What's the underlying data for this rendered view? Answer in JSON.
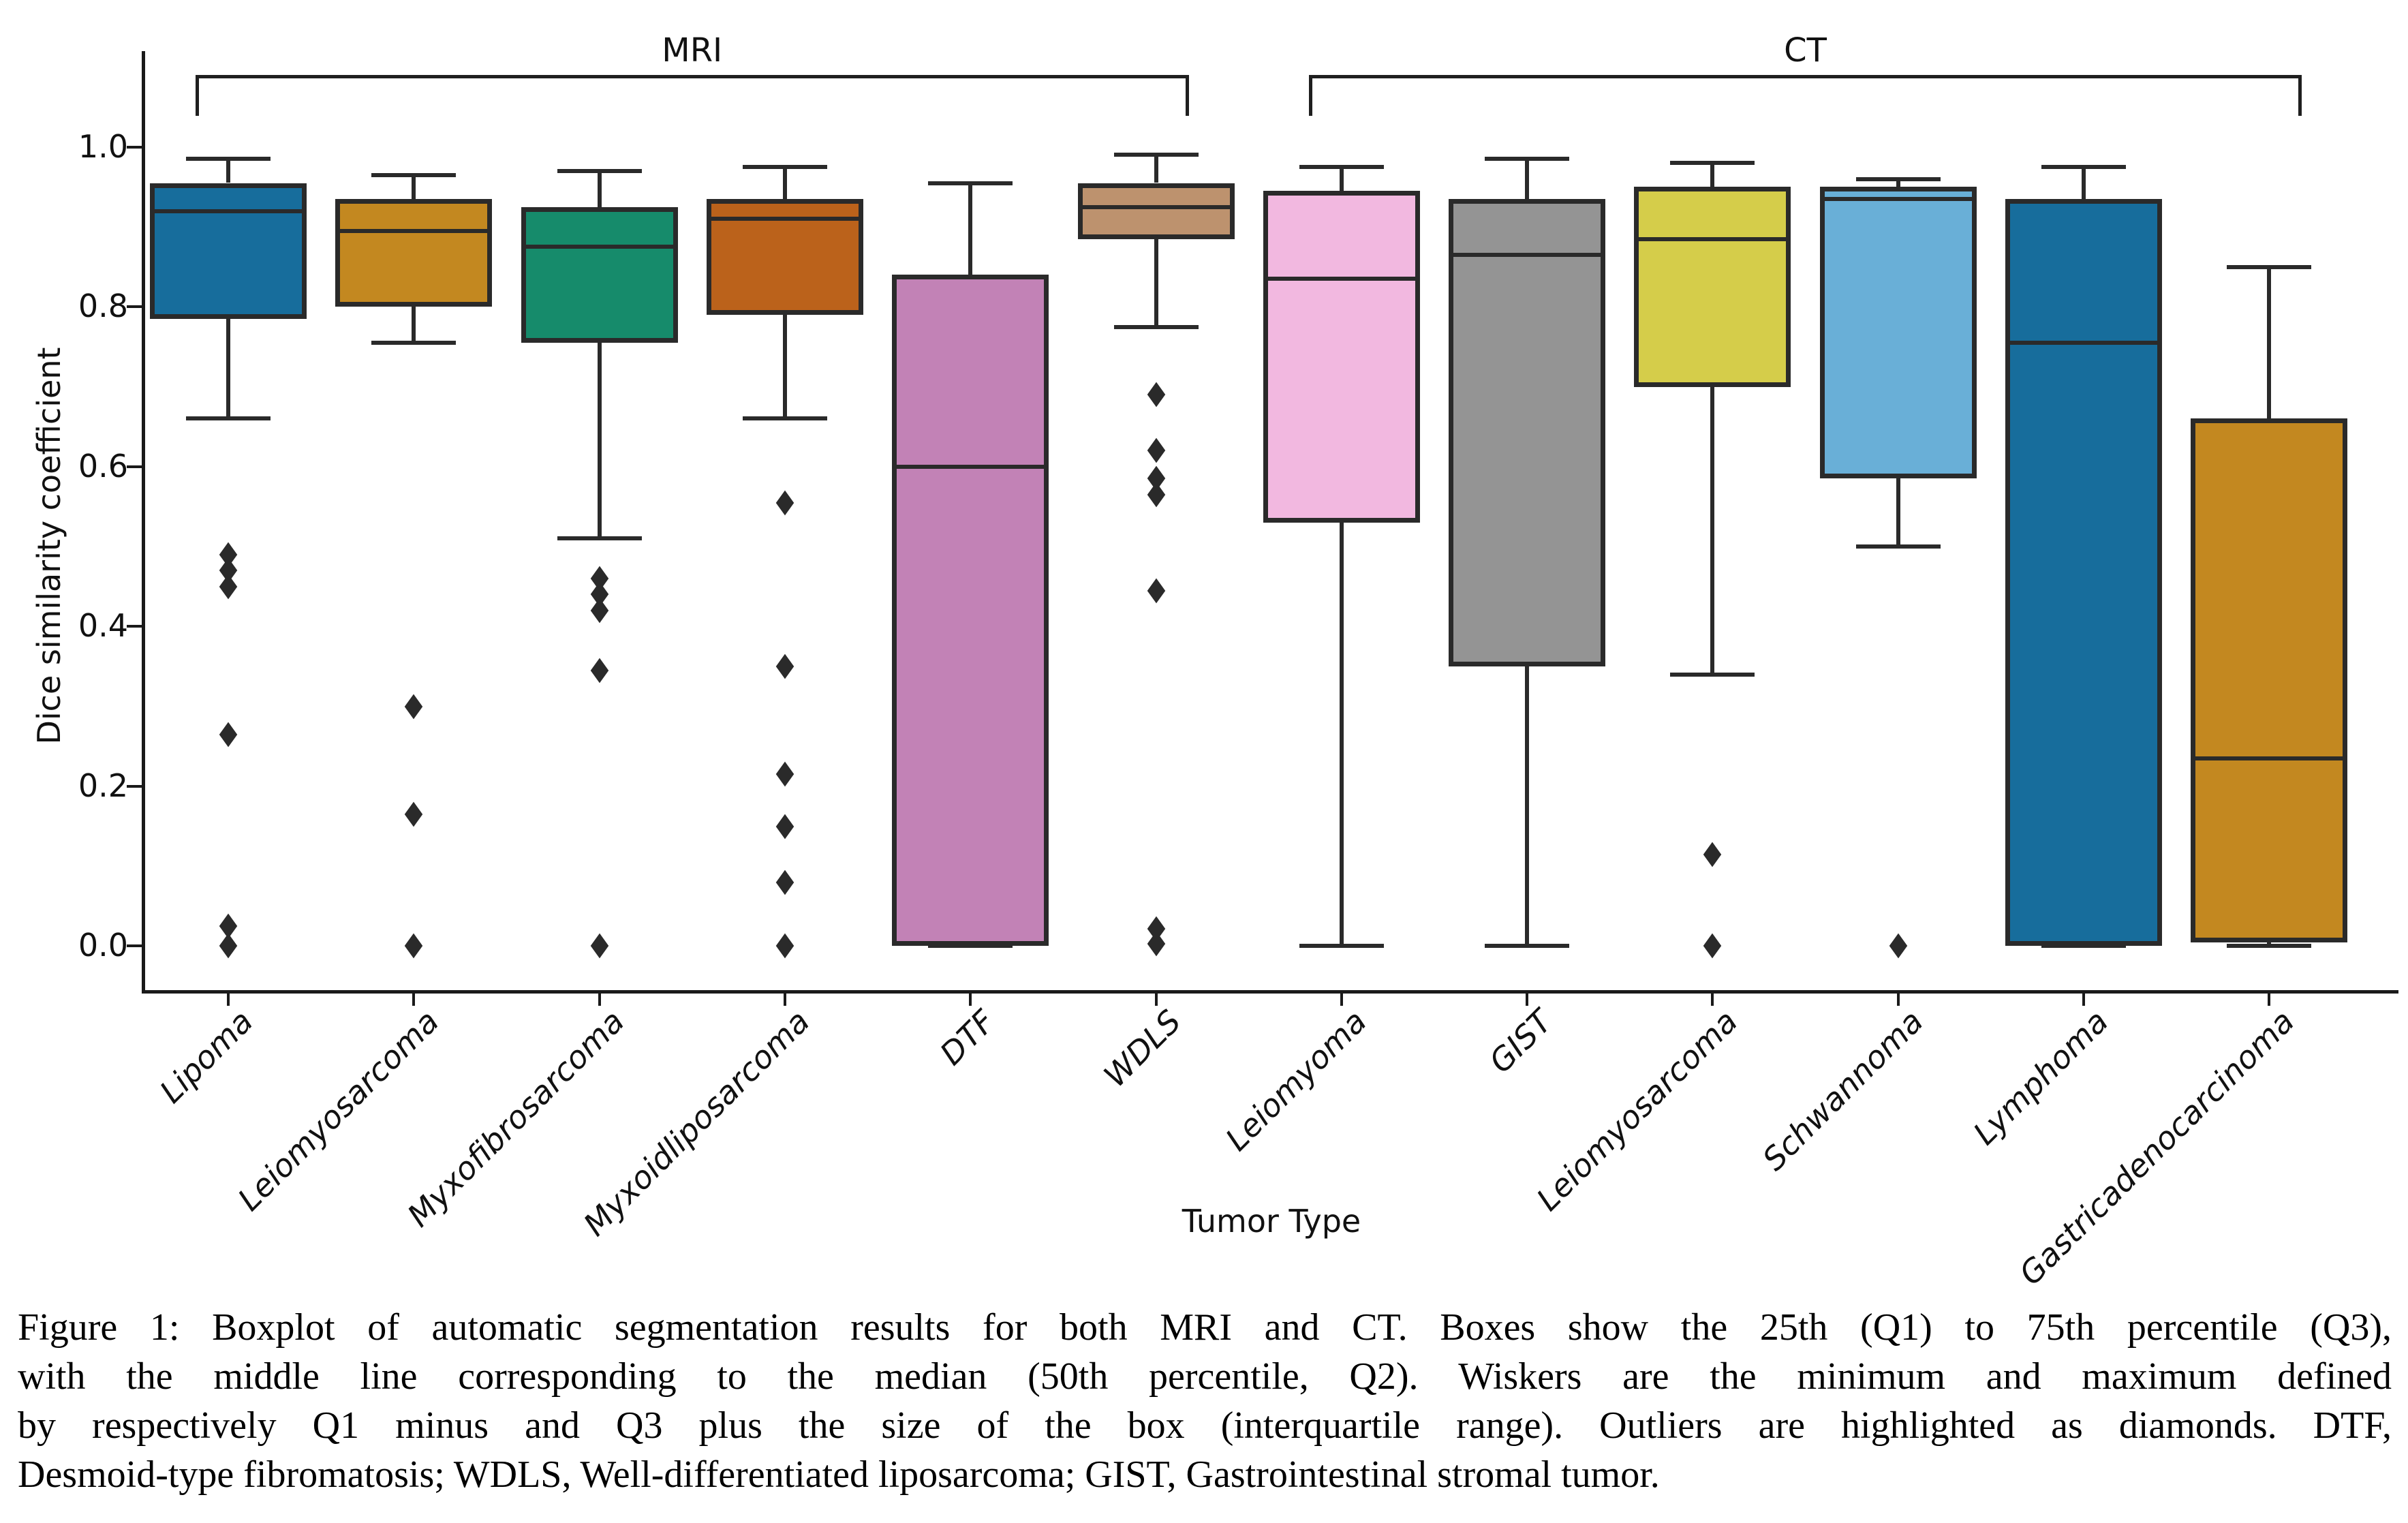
{
  "chart_data": {
    "type": "boxplot",
    "title": "",
    "xlabel": "Tumor Type",
    "ylabel": "Dice similarity coefficient",
    "ylim": [
      -0.055,
      1.12
    ],
    "y_ticks": [
      {
        "value": 1.0,
        "label": "1.0"
      },
      {
        "value": 0.8,
        "label": "0.8"
      },
      {
        "value": 0.6,
        "label": "0.6"
      },
      {
        "value": 0.4,
        "label": "0.4"
      },
      {
        "value": 0.2,
        "label": "0.2"
      },
      {
        "value": 0.0,
        "label": "0.0"
      }
    ],
    "grid": false,
    "modality_brackets": [
      {
        "label": "MRI",
        "from_index": 0,
        "to_index": 5
      },
      {
        "label": "CT",
        "from_index": 6,
        "to_index": 11
      }
    ],
    "boxes": [
      {
        "category": "Lipoma",
        "modality": "MRI",
        "color": "#176d9c",
        "whisker_low": 0.66,
        "q1": 0.785,
        "median": 0.92,
        "q3": 0.955,
        "whisker_high": 0.985,
        "outliers": [
          0.49,
          0.47,
          0.45,
          0.265,
          0.025,
          0.0
        ]
      },
      {
        "category": "Leiomyosarcoma",
        "modality": "MRI",
        "color": "#c38820",
        "whisker_low": 0.755,
        "q1": 0.8,
        "median": 0.895,
        "q3": 0.935,
        "whisker_high": 0.965,
        "outliers": [
          0.3,
          0.165,
          0.0
        ]
      },
      {
        "category": "Myxofibrosarcoma",
        "modality": "MRI",
        "color": "#168b6b",
        "whisker_low": 0.51,
        "q1": 0.755,
        "median": 0.875,
        "q3": 0.925,
        "whisker_high": 0.97,
        "outliers": [
          0.46,
          0.44,
          0.42,
          0.345,
          0.0
        ]
      },
      {
        "category": "Myxoidliposarcoma",
        "modality": "MRI",
        "color": "#bb621b",
        "whisker_low": 0.66,
        "q1": 0.79,
        "median": 0.91,
        "q3": 0.935,
        "whisker_high": 0.975,
        "outliers": [
          0.555,
          0.35,
          0.215,
          0.15,
          0.08,
          0.0
        ]
      },
      {
        "category": "DTF",
        "modality": "MRI",
        "color": "#c282b6",
        "whisker_low": 0.0,
        "q1": 0.0,
        "median": 0.6,
        "q3": 0.84,
        "whisker_high": 0.955,
        "outliers": []
      },
      {
        "category": "WDLS",
        "modality": "MRI",
        "color": "#bd926e",
        "whisker_low": 0.775,
        "q1": 0.885,
        "median": 0.925,
        "q3": 0.955,
        "whisker_high": 0.99,
        "outliers": [
          0.69,
          0.62,
          0.585,
          0.565,
          0.445,
          0.022,
          0.003
        ]
      },
      {
        "category": "Leiomyoma",
        "modality": "CT",
        "color": "#f2b8e0",
        "whisker_low": 0.0,
        "q1": 0.53,
        "median": 0.835,
        "q3": 0.945,
        "whisker_high": 0.975,
        "outliers": []
      },
      {
        "category": "GIST",
        "modality": "CT",
        "color": "#949494",
        "whisker_low": 0.0,
        "q1": 0.35,
        "median": 0.865,
        "q3": 0.935,
        "whisker_high": 0.985,
        "outliers": []
      },
      {
        "category": "Leiomyosarcoma",
        "modality": "CT",
        "color": "#d5cd4a",
        "whisker_low": 0.34,
        "q1": 0.7,
        "median": 0.885,
        "q3": 0.95,
        "whisker_high": 0.98,
        "outliers": [
          0.115,
          0.0
        ]
      },
      {
        "category": "Schwannoma",
        "modality": "CT",
        "color": "#69afd7",
        "whisker_low": 0.5,
        "q1": 0.585,
        "median": 0.935,
        "q3": 0.95,
        "whisker_high": 0.96,
        "outliers": [
          0.0
        ]
      },
      {
        "category": "Lymphoma",
        "modality": "CT",
        "color": "#176d9c",
        "whisker_low": 0.0,
        "q1": 0.0,
        "median": 0.755,
        "q3": 0.935,
        "whisker_high": 0.975,
        "outliers": []
      },
      {
        "category": "Gastricadenocarcinoma",
        "modality": "CT",
        "color": "#c38820",
        "whisker_low": 0.0,
        "q1": 0.005,
        "median": 0.235,
        "q3": 0.66,
        "whisker_high": 0.85,
        "outliers": []
      }
    ],
    "marker_color": "#2a2a2a",
    "legend": "none"
  },
  "caption": {
    "lines": [
      "Figure 1: Boxplot of automatic segmentation results for both MRI and CT. Boxes show the 25th (Q1) to 75th percentile (Q3),",
      "with the middle line corresponding to the median (50th percentile, Q2). Wiskers are the minimum and maximum defined",
      "by respectively Q1 minus and Q3 plus the size of the box (interquartile range). Outliers are highlighted as diamonds. DTF,",
      "Desmoid-type fibromatosis; WDLS, Well-differentiated liposarcoma; GIST, Gastrointestinal stromal tumor."
    ]
  }
}
